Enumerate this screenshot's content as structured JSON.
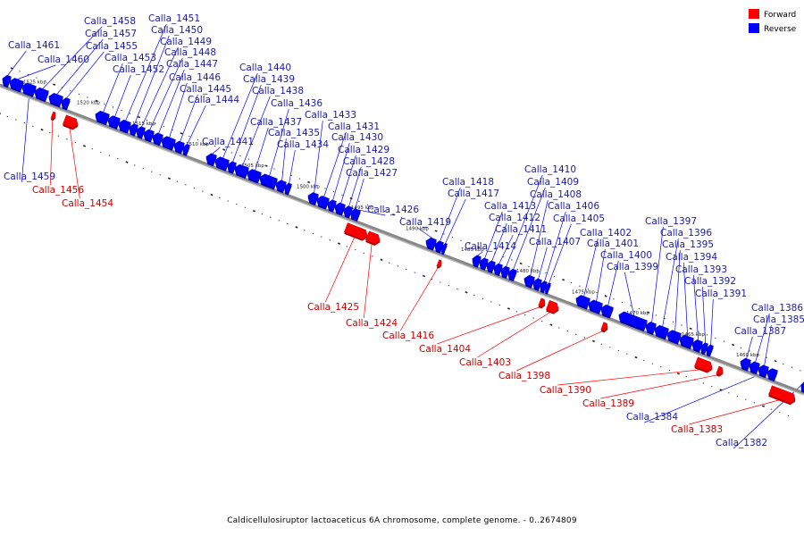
{
  "caption": "Caldicellulosiruptor lactoaceticus 6A chromosome, complete genome. - 0..2674809",
  "legend": [
    {
      "label": "Forward",
      "color": "#ff0000"
    },
    {
      "label": "Reverse",
      "color": "#0000ff"
    }
  ],
  "colors": {
    "forward": "#ff0000",
    "reverse": "#0000ff",
    "forward_label": "#cc0000",
    "reverse_label": "#1a1aa8",
    "backbone": "#888888"
  },
  "ticks": [
    "1525 kbp",
    "1520 kbp",
    "1515 kbp",
    "1510 kbp",
    "1505 kbp",
    "1500 kbp",
    "1495 kbp",
    "1490 kbp",
    "1485 kbp",
    "1480 kbp",
    "1475 kbp",
    "1470 kbp",
    "1465 kbp",
    "1460 kbp"
  ],
  "genes": [
    {
      "id": "Calla_1461",
      "strand": "reverse"
    },
    {
      "id": "Calla_1460",
      "strand": "reverse"
    },
    {
      "id": "Calla_1459",
      "strand": "reverse"
    },
    {
      "id": "Calla_1458",
      "strand": "reverse"
    },
    {
      "id": "Calla_1457",
      "strand": "reverse"
    },
    {
      "id": "Calla_1456",
      "strand": "forward"
    },
    {
      "id": "Calla_1455",
      "strand": "reverse"
    },
    {
      "id": "Calla_1454",
      "strand": "forward"
    },
    {
      "id": "Calla_1453",
      "strand": "reverse"
    },
    {
      "id": "Calla_1452",
      "strand": "reverse"
    },
    {
      "id": "Calla_1451",
      "strand": "reverse"
    },
    {
      "id": "Calla_1450",
      "strand": "reverse"
    },
    {
      "id": "Calla_1449",
      "strand": "reverse"
    },
    {
      "id": "Calla_1448",
      "strand": "reverse"
    },
    {
      "id": "Calla_1447",
      "strand": "reverse"
    },
    {
      "id": "Calla_1446",
      "strand": "reverse"
    },
    {
      "id": "Calla_1445",
      "strand": "reverse"
    },
    {
      "id": "Calla_1444",
      "strand": "reverse"
    },
    {
      "id": "Calla_1441",
      "strand": "reverse"
    },
    {
      "id": "Calla_1440",
      "strand": "reverse"
    },
    {
      "id": "Calla_1439",
      "strand": "reverse"
    },
    {
      "id": "Calla_1438",
      "strand": "reverse"
    },
    {
      "id": "Calla_1437",
      "strand": "reverse"
    },
    {
      "id": "Calla_1436",
      "strand": "reverse"
    },
    {
      "id": "Calla_1435",
      "strand": "reverse"
    },
    {
      "id": "Calla_1434",
      "strand": "reverse"
    },
    {
      "id": "Calla_1433",
      "strand": "reverse"
    },
    {
      "id": "Calla_1431",
      "strand": "reverse"
    },
    {
      "id": "Calla_1430",
      "strand": "reverse"
    },
    {
      "id": "Calla_1429",
      "strand": "reverse"
    },
    {
      "id": "Calla_1428",
      "strand": "reverse"
    },
    {
      "id": "Calla_1427",
      "strand": "reverse"
    },
    {
      "id": "Calla_1426",
      "strand": "reverse"
    },
    {
      "id": "Calla_1425",
      "strand": "forward"
    },
    {
      "id": "Calla_1424",
      "strand": "forward"
    },
    {
      "id": "Calla_1419",
      "strand": "reverse"
    },
    {
      "id": "Calla_1418",
      "strand": "reverse"
    },
    {
      "id": "Calla_1417",
      "strand": "reverse"
    },
    {
      "id": "Calla_1416",
      "strand": "forward"
    },
    {
      "id": "Calla_1414",
      "strand": "reverse"
    },
    {
      "id": "Calla_1413",
      "strand": "reverse"
    },
    {
      "id": "Calla_1412",
      "strand": "reverse"
    },
    {
      "id": "Calla_1411",
      "strand": "reverse"
    },
    {
      "id": "Calla_1410",
      "strand": "reverse"
    },
    {
      "id": "Calla_1409",
      "strand": "reverse"
    },
    {
      "id": "Calla_1408",
      "strand": "reverse"
    },
    {
      "id": "Calla_1407",
      "strand": "reverse"
    },
    {
      "id": "Calla_1406",
      "strand": "reverse"
    },
    {
      "id": "Calla_1405",
      "strand": "reverse"
    },
    {
      "id": "Calla_1404",
      "strand": "forward"
    },
    {
      "id": "Calla_1403",
      "strand": "forward"
    },
    {
      "id": "Calla_1402",
      "strand": "reverse"
    },
    {
      "id": "Calla_1401",
      "strand": "reverse"
    },
    {
      "id": "Calla_1400",
      "strand": "reverse"
    },
    {
      "id": "Calla_1399",
      "strand": "reverse"
    },
    {
      "id": "Calla_1398",
      "strand": "forward"
    },
    {
      "id": "Calla_1397",
      "strand": "reverse"
    },
    {
      "id": "Calla_1396",
      "strand": "reverse"
    },
    {
      "id": "Calla_1395",
      "strand": "reverse"
    },
    {
      "id": "Calla_1394",
      "strand": "reverse"
    },
    {
      "id": "Calla_1393",
      "strand": "reverse"
    },
    {
      "id": "Calla_1392",
      "strand": "reverse"
    },
    {
      "id": "Calla_1391",
      "strand": "reverse"
    },
    {
      "id": "Calla_1390",
      "strand": "forward"
    },
    {
      "id": "Calla_1389",
      "strand": "forward"
    },
    {
      "id": "Calla_1387",
      "strand": "reverse"
    },
    {
      "id": "Calla_1386",
      "strand": "reverse"
    },
    {
      "id": "Calla_1385",
      "strand": "reverse"
    },
    {
      "id": "Calla_1384",
      "strand": "reverse"
    },
    {
      "id": "Calla_1383",
      "strand": "forward"
    },
    {
      "id": "Calla_1382",
      "strand": "reverse"
    }
  ]
}
